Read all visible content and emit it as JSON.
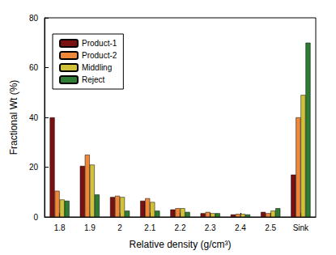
{
  "chart_data": {
    "type": "bar",
    "x_label": "Relative density (g/cm³)",
    "y_label": "Fractional Wt (%)",
    "categories": [
      "1.8",
      "1.9",
      "2",
      "2.1",
      "2.2",
      "2.3",
      "2.4",
      "2.5",
      "Sink"
    ],
    "series": [
      {
        "name": "Product-1",
        "color": "#7b1010",
        "values": [
          40,
          20.5,
          8,
          6.5,
          3,
          1.5,
          1,
          2,
          17
        ]
      },
      {
        "name": "Product-2",
        "color": "#f0883a",
        "values": [
          10.5,
          25,
          8.5,
          7.5,
          3.5,
          2,
          1.2,
          1.5,
          40
        ]
      },
      {
        "name": "Middling",
        "color": "#d2c23a",
        "values": [
          7,
          21,
          8,
          6,
          3.5,
          1.5,
          1.2,
          2.5,
          49
        ]
      },
      {
        "name": "Reject",
        "color": "#2e7d32",
        "values": [
          6.5,
          9,
          2.5,
          2.5,
          2,
          1.5,
          1,
          3.5,
          70
        ]
      }
    ],
    "ylim": [
      0,
      80
    ],
    "yticks": [
      0,
      20,
      40,
      60,
      80
    ],
    "grid": false,
    "legend": "upper left"
  }
}
